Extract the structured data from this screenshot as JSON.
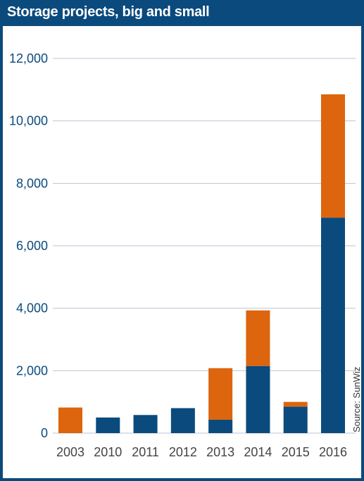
{
  "title": "Storage projects, big and small",
  "source": "Source: SunWiz",
  "colors": {
    "frame": "#0b4a7d",
    "series_blue": "#0b4a7d",
    "series_orange": "#dc650e"
  },
  "chart_data": {
    "type": "bar",
    "stacked": true,
    "title": "Storage projects, big and small",
    "xlabel": "",
    "ylabel": "",
    "categories": [
      "2003",
      "2010",
      "2011",
      "2012",
      "2013",
      "2014",
      "2015",
      "2016"
    ],
    "series": [
      {
        "color": "#0b4a7d",
        "values": [
          0,
          500,
          580,
          800,
          430,
          2150,
          850,
          6900
        ]
      },
      {
        "color": "#dc650e",
        "values": [
          820,
          0,
          0,
          0,
          1650,
          1780,
          150,
          3950
        ]
      }
    ],
    "ylim": [
      0,
      12000
    ],
    "yticks": [
      0,
      2000,
      4000,
      6000,
      8000,
      10000,
      12000
    ],
    "ytick_labels": [
      "0",
      "2,000",
      "4,000",
      "6,000",
      "8,000",
      "10,000",
      "12,000"
    ],
    "grid": true,
    "legend": "none"
  }
}
